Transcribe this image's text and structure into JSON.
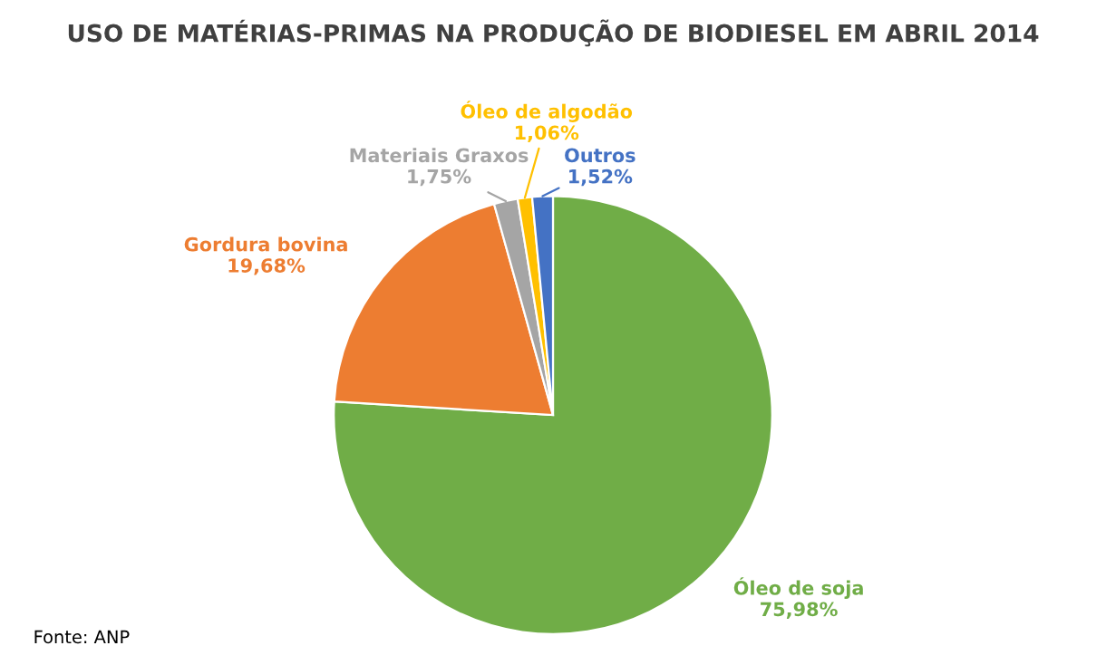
{
  "chart_data": {
    "type": "pie",
    "title": "USO DE MATÉRIAS-PRIMAS NA PRODUÇÃO DE BIODIESEL EM ABRIL 2014",
    "categories": [
      "Óleo de soja",
      "Gordura bovina",
      "Materiais Graxos",
      "Óleo de algodão",
      "Outros"
    ],
    "values": [
      75.98,
      19.68,
      1.75,
      1.06,
      1.52
    ],
    "value_labels": [
      "75,98%",
      "19,68%",
      "1,75%",
      "1,06%",
      "1,52%"
    ],
    "colors": [
      "#70ad47",
      "#ed7d31",
      "#a5a5a5",
      "#ffc000",
      "#4472c4"
    ],
    "legend": false,
    "annotations": [
      "Fonte: ANP"
    ]
  }
}
